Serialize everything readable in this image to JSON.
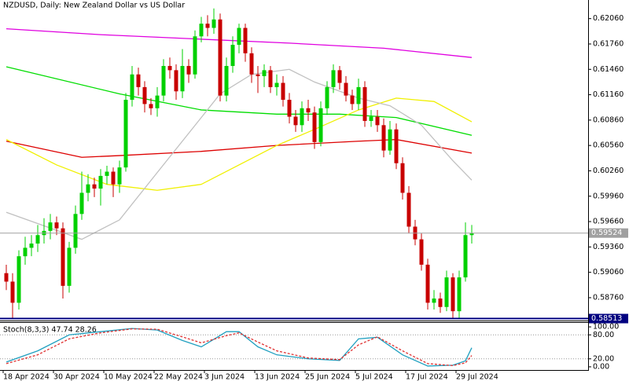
{
  "chart_data": [
    {
      "type": "candlestick",
      "title": "NZDUSD, Daily:  New Zealand Dollar vs US Dollar",
      "bull_color": "#00d000",
      "bear_color": "#c80000",
      "candles": [
        [
          0.5905,
          0.5915,
          0.5885,
          0.5895
        ],
        [
          0.5895,
          0.5905,
          0.5851,
          0.587
        ],
        [
          0.587,
          0.5932,
          0.5862,
          0.5925
        ],
        [
          0.5925,
          0.5948,
          0.5915,
          0.5935
        ],
        [
          0.5935,
          0.595,
          0.5925,
          0.594
        ],
        [
          0.594,
          0.5962,
          0.593,
          0.595
        ],
        [
          0.595,
          0.597,
          0.594,
          0.5955
        ],
        [
          0.5955,
          0.5975,
          0.5945,
          0.5965
        ],
        [
          0.5965,
          0.5972,
          0.595,
          0.5958
        ],
        [
          0.5958,
          0.5965,
          0.5875,
          0.589
        ],
        [
          0.589,
          0.5942,
          0.5882,
          0.5935
        ],
        [
          0.5935,
          0.5985,
          0.5928,
          0.5975
        ],
        [
          0.5975,
          0.6025,
          0.5968,
          0.6
        ],
        [
          0.6,
          0.6022,
          0.599,
          0.601
        ],
        [
          0.601,
          0.6018,
          0.5995,
          0.6005
        ],
        [
          0.6005,
          0.6028,
          0.5985,
          0.602
        ],
        [
          0.602,
          0.6032,
          0.601,
          0.6025
        ],
        [
          0.6025,
          0.603,
          0.5995,
          0.601
        ],
        [
          0.601,
          0.6038,
          0.6,
          0.603
        ],
        [
          0.603,
          0.6118,
          0.6025,
          0.611
        ],
        [
          0.611,
          0.615,
          0.6102,
          0.614
        ],
        [
          0.614,
          0.6148,
          0.6115,
          0.6125
        ],
        [
          0.6125,
          0.6132,
          0.6095,
          0.6105
        ],
        [
          0.6105,
          0.6112,
          0.6092,
          0.61
        ],
        [
          0.61,
          0.6125,
          0.609,
          0.6115
        ],
        [
          0.6115,
          0.6158,
          0.6108,
          0.615
        ],
        [
          0.615,
          0.616,
          0.6135,
          0.6145
        ],
        [
          0.6145,
          0.6152,
          0.611,
          0.612
        ],
        [
          0.612,
          0.617,
          0.6112,
          0.615
        ],
        [
          0.615,
          0.6158,
          0.613,
          0.614
        ],
        [
          0.614,
          0.6192,
          0.6135,
          0.6185
        ],
        [
          0.6185,
          0.6208,
          0.6178,
          0.62
        ],
        [
          0.62,
          0.621,
          0.6185,
          0.6195
        ],
        [
          0.6195,
          0.6218,
          0.6188,
          0.6205
        ],
        [
          0.6205,
          0.6212,
          0.6108,
          0.6115
        ],
        [
          0.6115,
          0.616,
          0.6108,
          0.615
        ],
        [
          0.615,
          0.6185,
          0.6142,
          0.6175
        ],
        [
          0.6175,
          0.62,
          0.6165,
          0.6195
        ],
        [
          0.6195,
          0.62,
          0.6155,
          0.6165
        ],
        [
          0.6165,
          0.6172,
          0.613,
          0.614
        ],
        [
          0.614,
          0.615,
          0.6118,
          0.6138
        ],
        [
          0.6138,
          0.6152,
          0.6125,
          0.6145
        ],
        [
          0.6145,
          0.615,
          0.6118,
          0.6125
        ],
        [
          0.6125,
          0.614,
          0.6115,
          0.613
        ],
        [
          0.613,
          0.6138,
          0.6102,
          0.611
        ],
        [
          0.611,
          0.6118,
          0.6082,
          0.609
        ],
        [
          0.609,
          0.6098,
          0.6072,
          0.608
        ],
        [
          0.608,
          0.6108,
          0.6072,
          0.61
        ],
        [
          0.61,
          0.611,
          0.6085,
          0.6095
        ],
        [
          0.6095,
          0.6102,
          0.6052,
          0.606
        ],
        [
          0.606,
          0.6108,
          0.6055,
          0.61
        ],
        [
          0.61,
          0.6132,
          0.6092,
          0.6125
        ],
        [
          0.6125,
          0.6152,
          0.6118,
          0.6145
        ],
        [
          0.6145,
          0.615,
          0.6122,
          0.613
        ],
        [
          0.613,
          0.6138,
          0.6108,
          0.6115
        ],
        [
          0.6115,
          0.6122,
          0.6098,
          0.6105
        ],
        [
          0.6105,
          0.6135,
          0.6098,
          0.6125
        ],
        [
          0.6125,
          0.6132,
          0.6078,
          0.6085
        ],
        [
          0.6085,
          0.6098,
          0.6078,
          0.609
        ],
        [
          0.609,
          0.6098,
          0.6072,
          0.608
        ],
        [
          0.608,
          0.6088,
          0.6042,
          0.605
        ],
        [
          0.605,
          0.6085,
          0.6045,
          0.6075
        ],
        [
          0.6075,
          0.6082,
          0.6028,
          0.6035
        ],
        [
          0.6035,
          0.6042,
          0.5992,
          0.6
        ],
        [
          0.6,
          0.6008,
          0.5952,
          0.596
        ],
        [
          0.596,
          0.5968,
          0.5938,
          0.5945
        ],
        [
          0.5945,
          0.5952,
          0.5908,
          0.5915
        ],
        [
          0.5915,
          0.5922,
          0.5862,
          0.587
        ],
        [
          0.587,
          0.5885,
          0.5862,
          0.5875
        ],
        [
          0.5875,
          0.5882,
          0.5858,
          0.5865
        ],
        [
          0.5865,
          0.5908,
          0.586,
          0.59
        ],
        [
          0.59,
          0.5905,
          0.5852,
          0.586
        ],
        [
          0.586,
          0.5908,
          0.5852,
          0.59
        ],
        [
          0.59,
          0.5965,
          0.5895,
          0.595
        ],
        [
          0.595,
          0.5962,
          0.594,
          0.5952
        ]
      ],
      "series": [
        {
          "color": "#e000e0",
          "x": [
            0,
            15,
            30,
            45,
            60,
            74
          ],
          "values": [
            0.6194,
            0.6187,
            0.6182,
            0.6177,
            0.6171,
            0.616
          ]
        },
        {
          "color": "#00dd00",
          "x": [
            0,
            18,
            31,
            43,
            53,
            62,
            74
          ],
          "values": [
            0.6149,
            0.6117,
            0.6098,
            0.6093,
            0.6093,
            0.6089,
            0.6068
          ]
        },
        {
          "color": "#dd0000",
          "x": [
            0,
            12,
            18,
            31,
            43,
            56,
            62,
            74
          ],
          "values": [
            0.6061,
            0.6042,
            0.6044,
            0.6049,
            0.6056,
            0.6061,
            0.6063,
            0.6047
          ]
        },
        {
          "color": "#f0f000",
          "x": [
            0,
            8,
            16,
            24,
            31,
            37,
            43,
            49,
            56,
            62,
            68,
            74
          ],
          "values": [
            0.6063,
            0.6033,
            0.601,
            0.6003,
            0.601,
            0.6033,
            0.6056,
            0.6075,
            0.6098,
            0.6112,
            0.6108,
            0.6084
          ]
        },
        {
          "color": "#c0c0c0",
          "x": [
            0,
            12,
            18,
            24,
            31,
            34,
            39,
            45,
            49,
            56,
            61,
            66,
            71,
            74
          ],
          "values": [
            0.5977,
            0.5945,
            0.5968,
            0.6024,
            0.6089,
            0.6117,
            0.614,
            0.6146,
            0.6131,
            0.6112,
            0.6103,
            0.608,
            0.6038,
            0.6015
          ]
        }
      ],
      "hlines": [
        {
          "value": 0.59524,
          "label": "0.59524",
          "color": "#a0a0a0"
        },
        {
          "value": 0.58513,
          "label": "0.58513",
          "color": "#000080"
        }
      ],
      "ylim": [
        0.5849,
        0.6228
      ],
      "yticks": [
        {
          "value": 0.6206,
          "label": "0.62060"
        },
        {
          "value": 0.6176,
          "label": "0.61760"
        },
        {
          "value": 0.6146,
          "label": "0.61460"
        },
        {
          "value": 0.6116,
          "label": "0.61160"
        },
        {
          "value": 0.6086,
          "label": "0.60860"
        },
        {
          "value": 0.6056,
          "label": "0.60560"
        },
        {
          "value": 0.6026,
          "label": "0.60260"
        },
        {
          "value": 0.5996,
          "label": "0.59960"
        },
        {
          "value": 0.5966,
          "label": "0.59660"
        },
        {
          "value": 0.5936,
          "label": "0.59360"
        },
        {
          "value": 0.5906,
          "label": "0.59060"
        },
        {
          "value": 0.5876,
          "label": "0.58760"
        }
      ],
      "xticks": [
        {
          "value": 0,
          "label": "18 Apr 2024"
        },
        {
          "value": 8,
          "label": "30 Apr 2024"
        },
        {
          "value": 16,
          "label": "10 May 2024"
        },
        {
          "value": 24,
          "label": "22 May 2024"
        },
        {
          "value": 32,
          "label": "3 Jun 2024"
        },
        {
          "value": 40,
          "label": "13 Jun 2024"
        },
        {
          "value": 48,
          "label": "25 Jun 2024"
        },
        {
          "value": 56,
          "label": "5 Jul 2024"
        },
        {
          "value": 64,
          "label": "17 Jul 2024"
        },
        {
          "value": 72,
          "label": "29 Jul 2024"
        }
      ]
    },
    {
      "type": "line",
      "title": "Stoch(8,3,3) 47.74 28.26",
      "series": [
        {
          "color": "#20a0c0",
          "x": [
            0,
            5,
            10,
            15,
            20,
            24,
            28,
            31,
            35,
            37,
            40,
            43,
            48,
            53,
            56,
            59,
            63,
            67,
            71,
            73,
            74
          ],
          "values": [
            12,
            40,
            80,
            88,
            96,
            92,
            66,
            50,
            88,
            88,
            50,
            30,
            20,
            16,
            70,
            74,
            30,
            2,
            4,
            15,
            47.74
          ]
        },
        {
          "color": "#e03030",
          "dashed": true,
          "x": [
            0,
            5,
            10,
            15,
            20,
            24,
            28,
            31,
            35,
            37,
            40,
            43,
            48,
            53,
            56,
            59,
            63,
            67,
            71,
            73,
            74
          ],
          "values": [
            8,
            30,
            70,
            85,
            95,
            94,
            75,
            60,
            78,
            85,
            62,
            40,
            22,
            18,
            55,
            75,
            40,
            8,
            3,
            10,
            28.26
          ]
        }
      ],
      "levels": [
        80,
        20
      ],
      "ylim": [
        -8,
        110
      ],
      "yticks": [
        {
          "value": 100,
          "label": "100.00"
        },
        {
          "value": 80,
          "label": "80.00"
        },
        {
          "value": 20,
          "label": "20.00"
        },
        {
          "value": 0,
          "label": "0.00"
        }
      ]
    }
  ]
}
